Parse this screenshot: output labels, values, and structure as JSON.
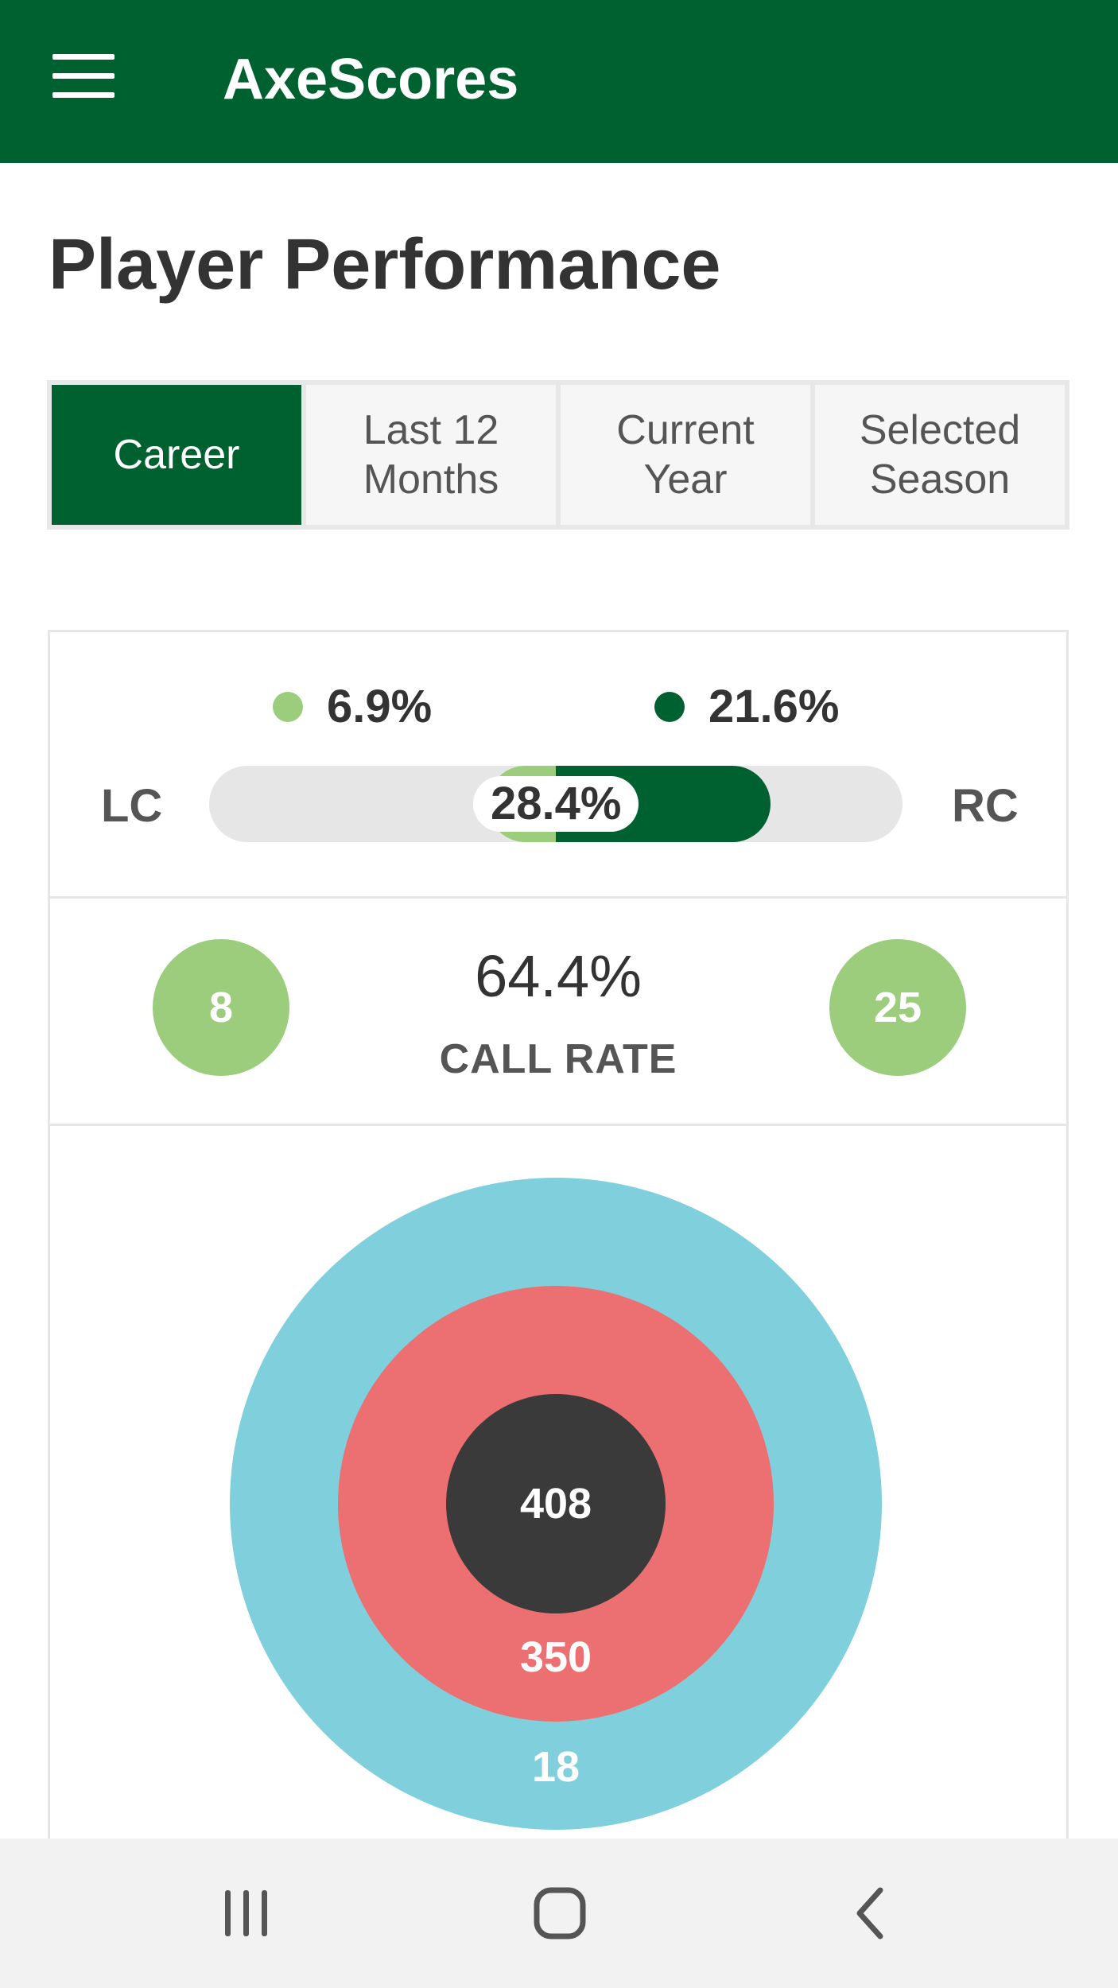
{
  "app": {
    "title": "AxeScores"
  },
  "page": {
    "title": "Player Performance"
  },
  "tabs": [
    {
      "label": "Career",
      "active": true
    },
    {
      "label": "Last 12\nMonths",
      "active": false
    },
    {
      "label": "Current\nYear",
      "active": false
    },
    {
      "label": "Selected\nSeason",
      "active": false
    }
  ],
  "clutch": {
    "left_label": "LC",
    "right_label": "RC",
    "left_pct_text": "6.9%",
    "right_pct_text": "21.6%",
    "total_text": "28.4%",
    "left_fraction": 0.069,
    "right_fraction": 0.216,
    "left_color": "#9ccd7c",
    "right_color": "#006130"
  },
  "call": {
    "left_count": "8",
    "right_count": "25",
    "rate": "64.4%",
    "label": "CALL RATE"
  },
  "target": {
    "bullseye": "408",
    "middle": "350",
    "outer": "18",
    "colors": {
      "bullseye": "#3a3a3a",
      "middle": "#ec7071",
      "outer": "#7fd0dc"
    }
  },
  "colors": {
    "brand": "#006130",
    "accent_light": "#9ccd7c"
  },
  "navbar": {
    "icons": [
      "recent-apps-icon",
      "home-icon",
      "back-icon"
    ]
  }
}
